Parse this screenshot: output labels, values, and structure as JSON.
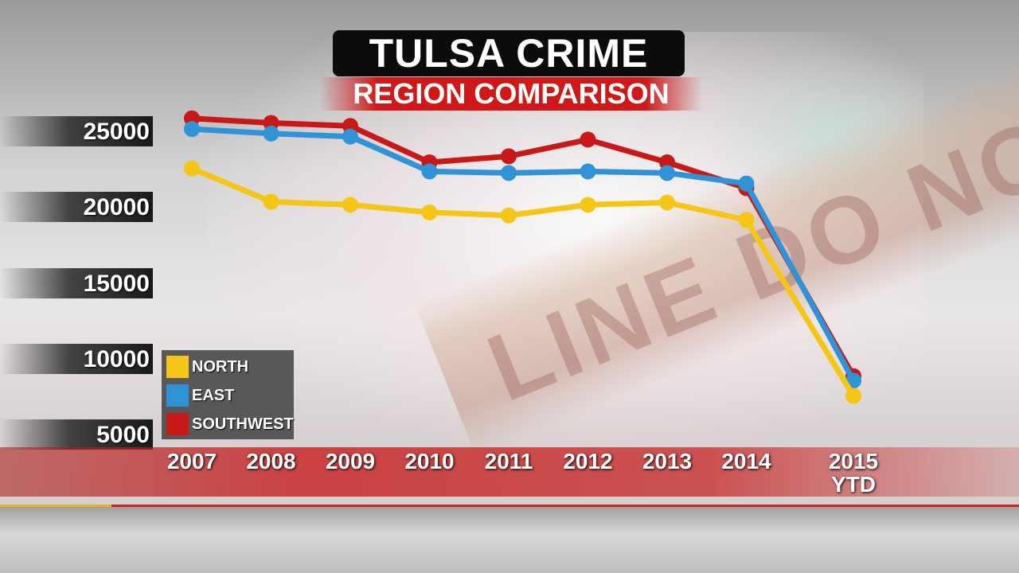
{
  "chart_data": {
    "type": "line",
    "title": "TULSA CRIME",
    "subtitle": "REGION COMPARISON",
    "categories": [
      "2007",
      "2008",
      "2009",
      "2010",
      "2011",
      "2012",
      "2013",
      "2014",
      "2015\nYTD"
    ],
    "category_labels": [
      {
        "line1": "2007",
        "line2": ""
      },
      {
        "line1": "2008",
        "line2": ""
      },
      {
        "line1": "2009",
        "line2": ""
      },
      {
        "line1": "2010",
        "line2": ""
      },
      {
        "line1": "2011",
        "line2": ""
      },
      {
        "line1": "2012",
        "line2": ""
      },
      {
        "line1": "2013",
        "line2": ""
      },
      {
        "line1": "2014",
        "line2": ""
      },
      {
        "line1": "2015",
        "line2": "YTD"
      }
    ],
    "yticks": [
      "25000",
      "20000",
      "15000",
      "10000",
      "5000"
    ],
    "ylim": [
      5000,
      25000
    ],
    "series": [
      {
        "name": "NORTH",
        "color": "#f5c518",
        "values": [
          22500,
          20300,
          20100,
          19600,
          19400,
          20100,
          20250,
          19100,
          7500
        ]
      },
      {
        "name": "EAST",
        "color": "#2f93d6",
        "values": [
          25100,
          24800,
          24600,
          22300,
          22200,
          22300,
          22200,
          21500,
          8500
        ]
      },
      {
        "name": "SOUTHWEST",
        "color": "#c81818",
        "values": [
          25800,
          25500,
          25300,
          22900,
          23300,
          24400,
          22900,
          21200,
          8800
        ]
      }
    ],
    "legend": "bottom-left",
    "grid": false
  }
}
